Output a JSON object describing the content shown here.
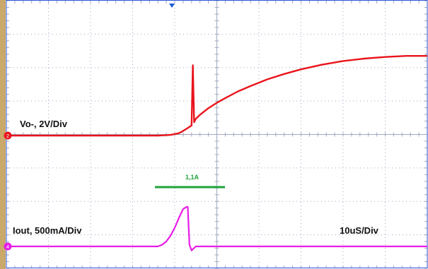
{
  "chart_data": {
    "type": "line",
    "grid": true,
    "divisions": {
      "x": 10,
      "y": 8
    },
    "xlim": [
      0,
      100
    ],
    "x_unit": "us",
    "annotations": {
      "ch2_label": "Vo-, 2V/Div",
      "ch4_label": "Iout, 500mA/Div",
      "timebase": "10uS/Div",
      "peak_label": "1,1A"
    },
    "markers": {
      "ch2": "2",
      "ch4": "4"
    },
    "series": [
      {
        "channel": "2",
        "color": "#e8141c",
        "x": [
          0,
          36,
          39,
          41,
          42,
          43,
          44,
          44.3,
          44.6,
          45,
          46,
          47,
          48,
          50,
          52,
          55,
          58,
          62,
          66,
          70,
          75,
          80,
          85,
          90,
          95,
          100
        ],
        "y": [
          0,
          0,
          0.02,
          0.07,
          0.14,
          0.22,
          0.3,
          2.1,
          0.4,
          0.5,
          0.62,
          0.72,
          0.82,
          0.98,
          1.12,
          1.32,
          1.48,
          1.68,
          1.84,
          1.98,
          2.12,
          2.23,
          2.3,
          2.35,
          2.38,
          2.38
        ]
      },
      {
        "channel": "4",
        "color": "#e81ce8",
        "x": [
          0,
          36,
          37,
          38,
          39,
          40,
          41,
          42,
          42.8,
          43.1,
          43.5,
          44,
          45,
          100
        ],
        "y": [
          0,
          0,
          0.05,
          0.15,
          0.32,
          0.56,
          0.85,
          1.12,
          1.18,
          1.18,
          0.05,
          -0.12,
          0,
          0
        ]
      }
    ]
  },
  "colors": {
    "ch2": "#e8141c",
    "ch4": "#e81ce8",
    "marker": "#1fa33a",
    "trigger": "#1c5ad8",
    "bezel": "#c9a86a",
    "grid": "#a0a8c0",
    "frame": "#2a55d8"
  }
}
